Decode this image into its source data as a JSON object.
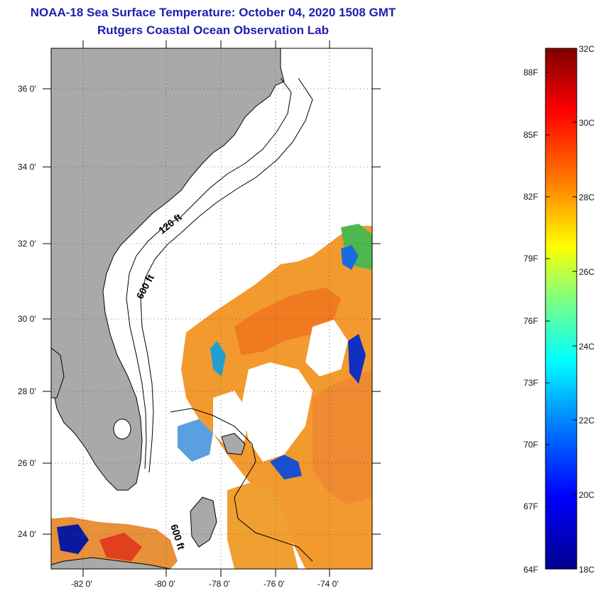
{
  "header": {
    "title": "NOAA-18 Sea Surface Temperature:  October 04, 2020 1508 GMT",
    "subtitle": "Rutgers Coastal Ocean Observation Lab"
  },
  "map": {
    "lat_labels": [
      "36 0'",
      "34 0'",
      "32 0'",
      "30 0'",
      "28 0'",
      "26 0'",
      "24 0'"
    ],
    "lon_labels": [
      "-82 0'",
      "-80 0'",
      "-78 0'",
      "-76 0'",
      "-74 0'"
    ],
    "contours": [
      "120 ft",
      "600 ft",
      "600 ft"
    ],
    "colors": {
      "land": "#a9a9a9",
      "ocean_nodata": "#ffffff",
      "frame": "#000000"
    }
  },
  "colorbar": {
    "celsius": [
      "32C",
      "30C",
      "28C",
      "26C",
      "24C",
      "22C",
      "20C",
      "18C"
    ],
    "fahrenheit": [
      "88F",
      "85F",
      "82F",
      "79F",
      "76F",
      "73F",
      "70F",
      "67F",
      "64F"
    ],
    "palette": [
      "#00008f",
      "#0000ff",
      "#0080ff",
      "#00ffff",
      "#80ff80",
      "#ffff00",
      "#ff8000",
      "#ff0000",
      "#800000"
    ]
  }
}
